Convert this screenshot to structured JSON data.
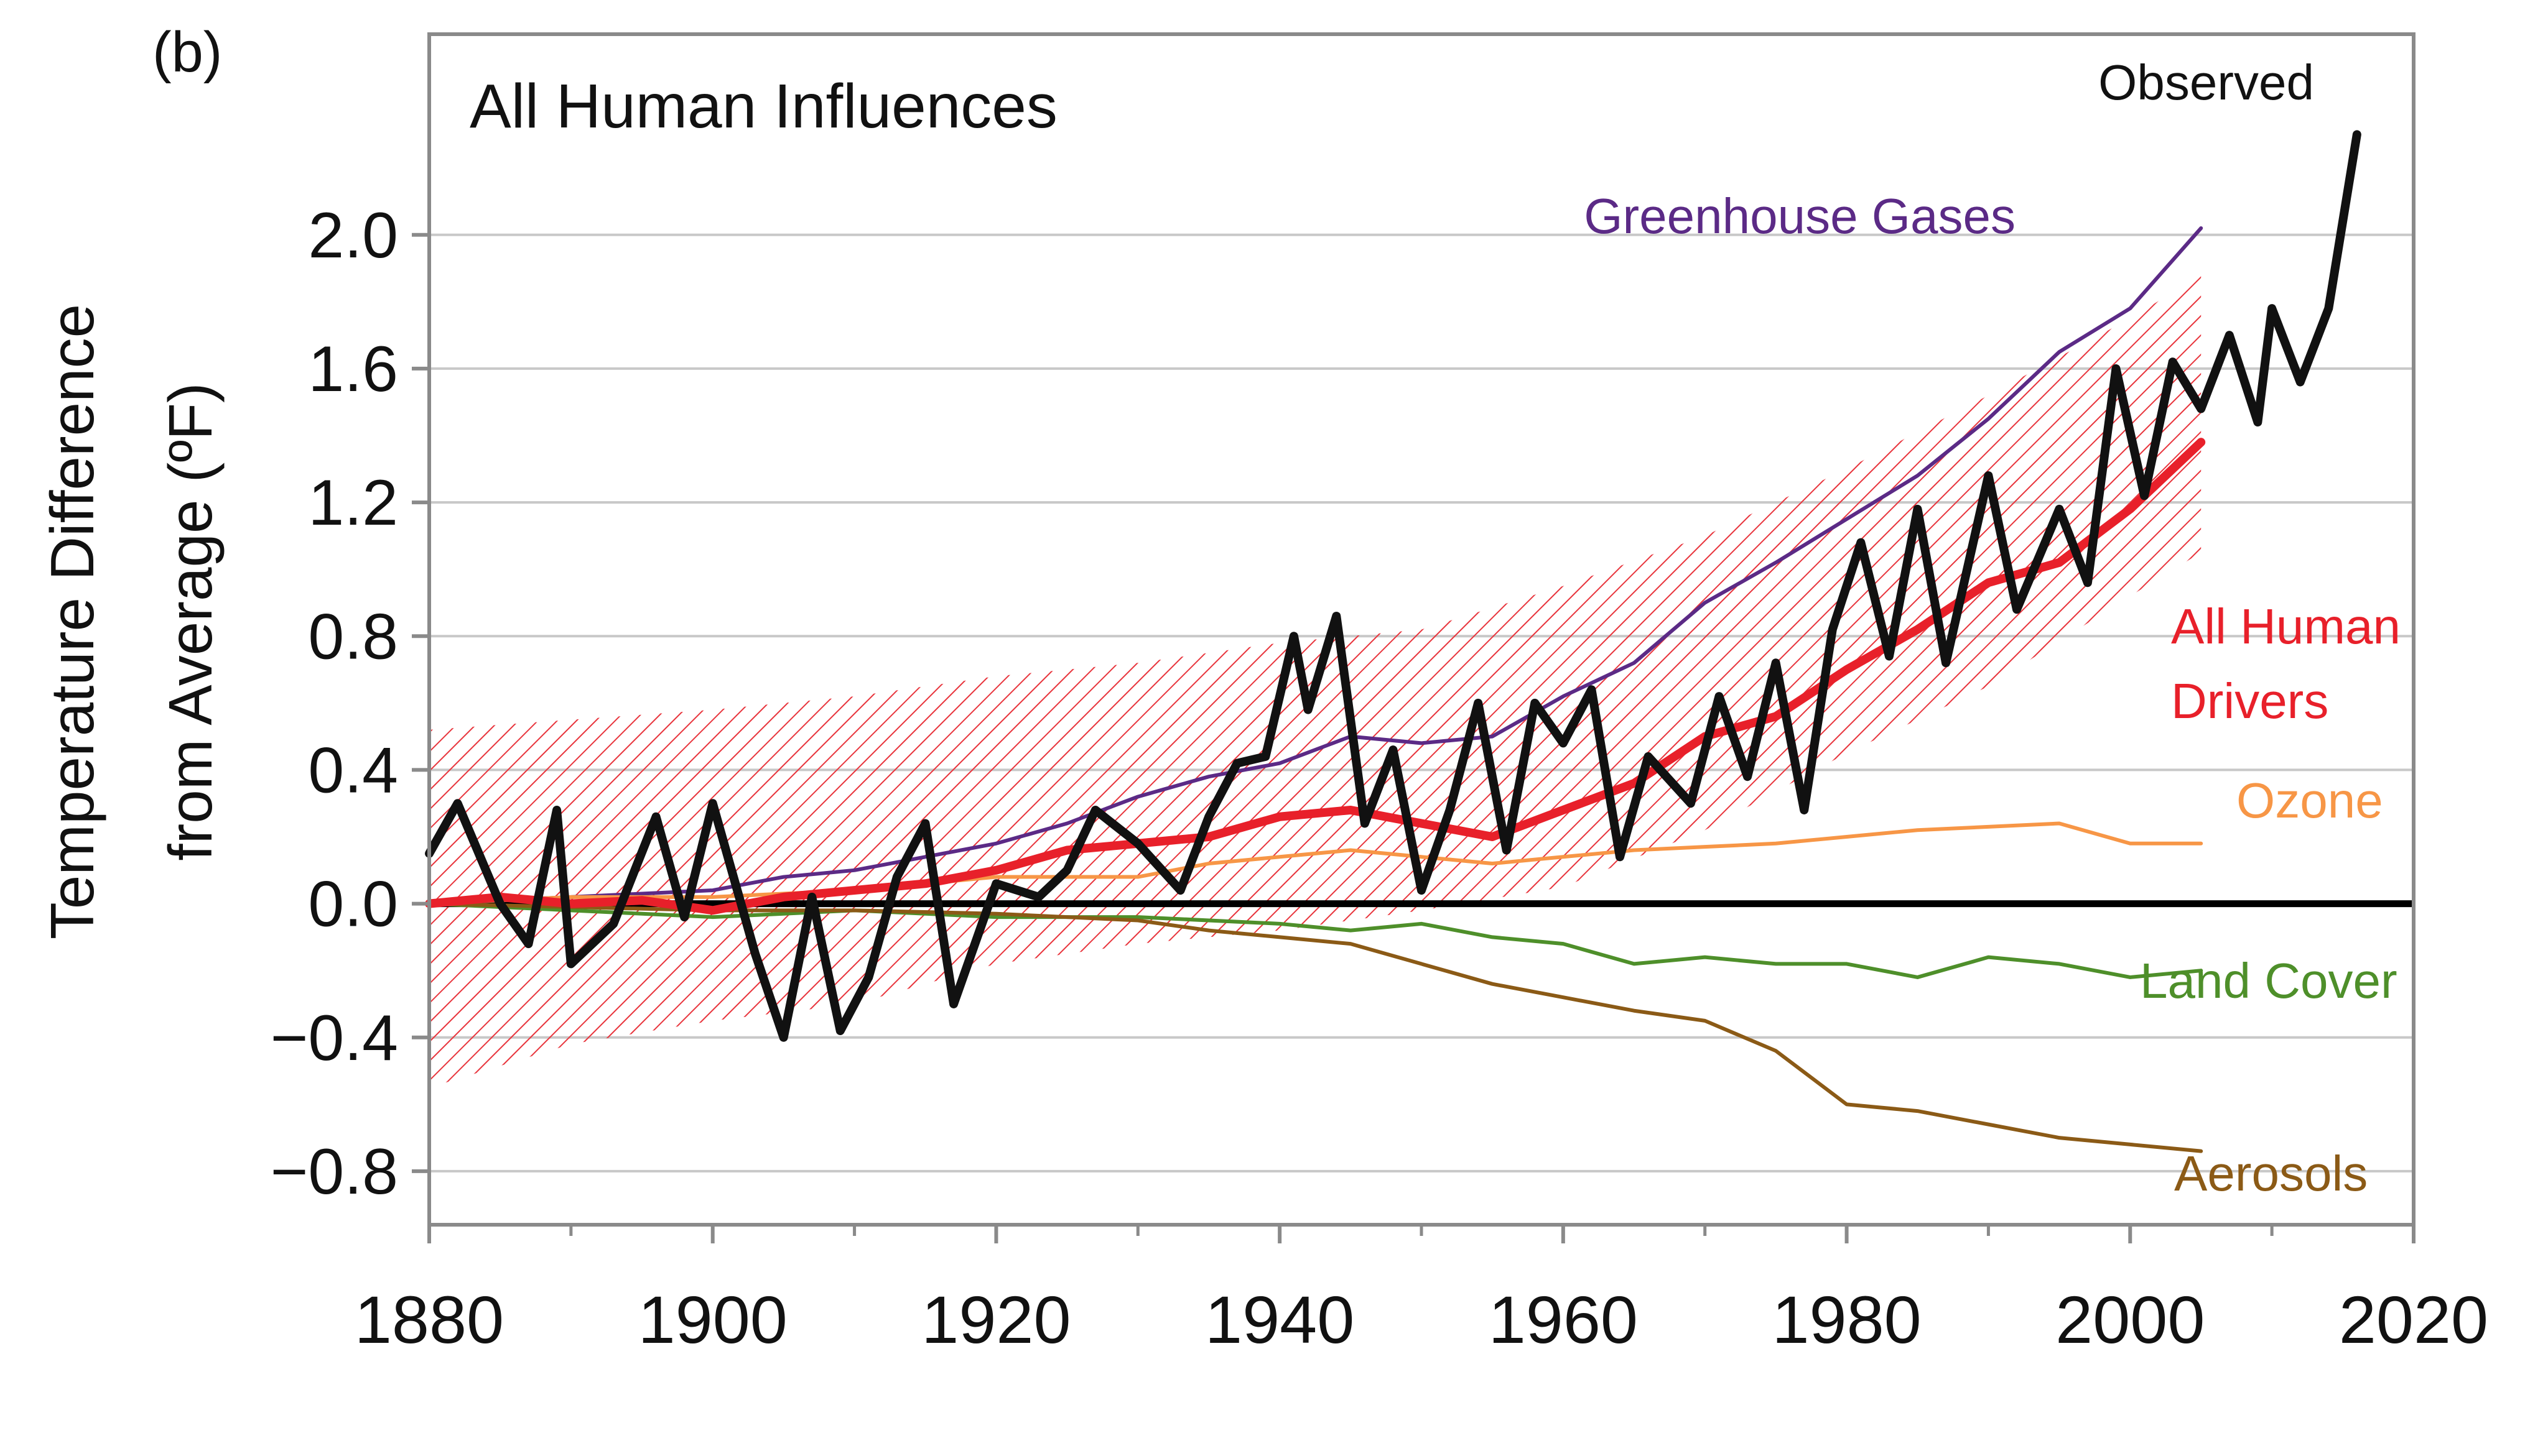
{
  "panel_label": "(b)",
  "chart_data": {
    "type": "line",
    "title": "All Human Influences",
    "ylabel_line1": "Temperature Difference",
    "ylabel_line2": "from Average (ºF)",
    "xlabel": "",
    "xlim": [
      1880,
      2020
    ],
    "ylim": [
      -0.96,
      2.6
    ],
    "x_ticks": [
      1880,
      1900,
      1920,
      1940,
      1960,
      1980,
      2000,
      2020
    ],
    "y_ticks": [
      2.0,
      1.6,
      1.2,
      0.8,
      0.4,
      0.0,
      -0.4,
      -0.8
    ],
    "y_tick_labels": [
      "2.0",
      "1.6",
      "1.2",
      "0.8",
      "0.4",
      "0.0",
      "−0.4",
      "−0.8"
    ],
    "grid": "horizontal",
    "zero_line": true,
    "uncertainty_band": {
      "name": "All Human Drivers range",
      "color": "#e8343c",
      "x": [
        1880,
        1890,
        1900,
        1910,
        1920,
        1930,
        1940,
        1950,
        1960,
        1970,
        1980,
        1990,
        2000,
        2005
      ],
      "lower": [
        -0.55,
        -0.42,
        -0.35,
        -0.3,
        -0.18,
        -0.12,
        -0.08,
        -0.02,
        0.05,
        0.22,
        0.45,
        0.65,
        0.92,
        1.05
      ],
      "upper": [
        0.52,
        0.55,
        0.58,
        0.62,
        0.68,
        0.72,
        0.78,
        0.82,
        0.95,
        1.1,
        1.3,
        1.52,
        1.75,
        1.88
      ]
    },
    "series": [
      {
        "name": "Greenhouse Gases",
        "color": "#5b2a86",
        "width": 6,
        "x": [
          1880,
          1890,
          1900,
          1905,
          1910,
          1915,
          1920,
          1925,
          1930,
          1935,
          1940,
          1945,
          1950,
          1955,
          1960,
          1965,
          1970,
          1975,
          1980,
          1985,
          1990,
          1995,
          2000,
          2005
        ],
        "y": [
          0.0,
          0.02,
          0.04,
          0.08,
          0.1,
          0.14,
          0.18,
          0.24,
          0.32,
          0.38,
          0.42,
          0.5,
          0.48,
          0.5,
          0.62,
          0.72,
          0.9,
          1.02,
          1.15,
          1.28,
          1.45,
          1.65,
          1.78,
          2.02
        ]
      },
      {
        "name": "Ozone",
        "color": "#f79646",
        "width": 6,
        "x": [
          1880,
          1890,
          1900,
          1910,
          1920,
          1930,
          1935,
          1940,
          1945,
          1950,
          1955,
          1960,
          1965,
          1970,
          1975,
          1980,
          1985,
          1990,
          1995,
          2000,
          2005
        ],
        "y": [
          0.0,
          0.02,
          0.02,
          0.04,
          0.08,
          0.08,
          0.12,
          0.14,
          0.16,
          0.14,
          0.12,
          0.14,
          0.16,
          0.17,
          0.18,
          0.2,
          0.22,
          0.23,
          0.24,
          0.18,
          0.18
        ]
      },
      {
        "name": "Land Cover",
        "color": "#4e8f2a",
        "width": 6,
        "x": [
          1880,
          1890,
          1900,
          1910,
          1920,
          1930,
          1940,
          1945,
          1950,
          1955,
          1960,
          1965,
          1970,
          1975,
          1980,
          1985,
          1990,
          1995,
          2000,
          2005
        ],
        "y": [
          0.0,
          -0.02,
          -0.04,
          -0.02,
          -0.04,
          -0.04,
          -0.06,
          -0.08,
          -0.06,
          -0.1,
          -0.12,
          -0.18,
          -0.16,
          -0.18,
          -0.18,
          -0.22,
          -0.16,
          -0.18,
          -0.22,
          -0.2
        ]
      },
      {
        "name": "Aerosols",
        "color": "#8b5a16",
        "width": 6,
        "x": [
          1880,
          1890,
          1900,
          1910,
          1920,
          1930,
          1935,
          1940,
          1945,
          1950,
          1955,
          1960,
          1965,
          1970,
          1975,
          1980,
          1985,
          1990,
          1995,
          2000,
          2005
        ],
        "y": [
          0.0,
          -0.01,
          -0.02,
          -0.02,
          -0.03,
          -0.05,
          -0.08,
          -0.1,
          -0.12,
          -0.18,
          -0.24,
          -0.28,
          -0.32,
          -0.35,
          -0.44,
          -0.6,
          -0.62,
          -0.66,
          -0.7,
          -0.72,
          -0.74
        ]
      },
      {
        "name": "All Human Drivers",
        "color": "#e8202a",
        "width": 14,
        "x": [
          1880,
          1885,
          1890,
          1895,
          1900,
          1905,
          1910,
          1915,
          1920,
          1925,
          1930,
          1935,
          1940,
          1945,
          1950,
          1955,
          1960,
          1965,
          1970,
          1975,
          1980,
          1985,
          1990,
          1995,
          2000,
          2005
        ],
        "y": [
          0.0,
          0.02,
          0.0,
          0.01,
          -0.02,
          0.02,
          0.04,
          0.06,
          0.1,
          0.16,
          0.18,
          0.2,
          0.26,
          0.28,
          0.24,
          0.2,
          0.28,
          0.36,
          0.5,
          0.56,
          0.7,
          0.82,
          0.96,
          1.02,
          1.18,
          1.38
        ]
      },
      {
        "name": "Observed",
        "color": "#111111",
        "width": 14,
        "x": [
          1880,
          1882,
          1885,
          1887,
          1889,
          1890,
          1893,
          1896,
          1898,
          1900,
          1903,
          1905,
          1907,
          1909,
          1911,
          1913,
          1915,
          1917,
          1920,
          1923,
          1925,
          1927,
          1930,
          1933,
          1935,
          1937,
          1939,
          1941,
          1942,
          1944,
          1946,
          1948,
          1950,
          1952,
          1954,
          1956,
          1958,
          1960,
          1962,
          1964,
          1966,
          1969,
          1971,
          1973,
          1975,
          1977,
          1979,
          1981,
          1983,
          1985,
          1987,
          1990,
          1992,
          1995,
          1997,
          1999,
          2001,
          2003,
          2005,
          2007,
          2009,
          2010,
          2012,
          2014,
          2016
        ],
        "y": [
          0.15,
          0.3,
          0.0,
          -0.12,
          0.28,
          -0.18,
          -0.06,
          0.26,
          -0.04,
          0.3,
          -0.15,
          -0.4,
          0.02,
          -0.38,
          -0.22,
          0.08,
          0.24,
          -0.3,
          0.06,
          0.02,
          0.1,
          0.28,
          0.18,
          0.04,
          0.26,
          0.42,
          0.44,
          0.8,
          0.58,
          0.86,
          0.24,
          0.46,
          0.04,
          0.28,
          0.6,
          0.16,
          0.6,
          0.48,
          0.64,
          0.14,
          0.44,
          0.3,
          0.62,
          0.38,
          0.72,
          0.28,
          0.82,
          1.08,
          0.74,
          1.18,
          0.72,
          1.28,
          0.88,
          1.18,
          0.96,
          1.6,
          1.22,
          1.62,
          1.48,
          1.7,
          1.44,
          1.78,
          1.56,
          1.78,
          2.3
        ]
      }
    ],
    "labels": {
      "observed": "Observed",
      "greenhouse": "Greenhouse Gases",
      "all_human_line1": "All Human",
      "all_human_line2": "Drivers",
      "ozone": "Ozone",
      "land_cover": "Land Cover",
      "aerosols": "Aerosols"
    }
  }
}
